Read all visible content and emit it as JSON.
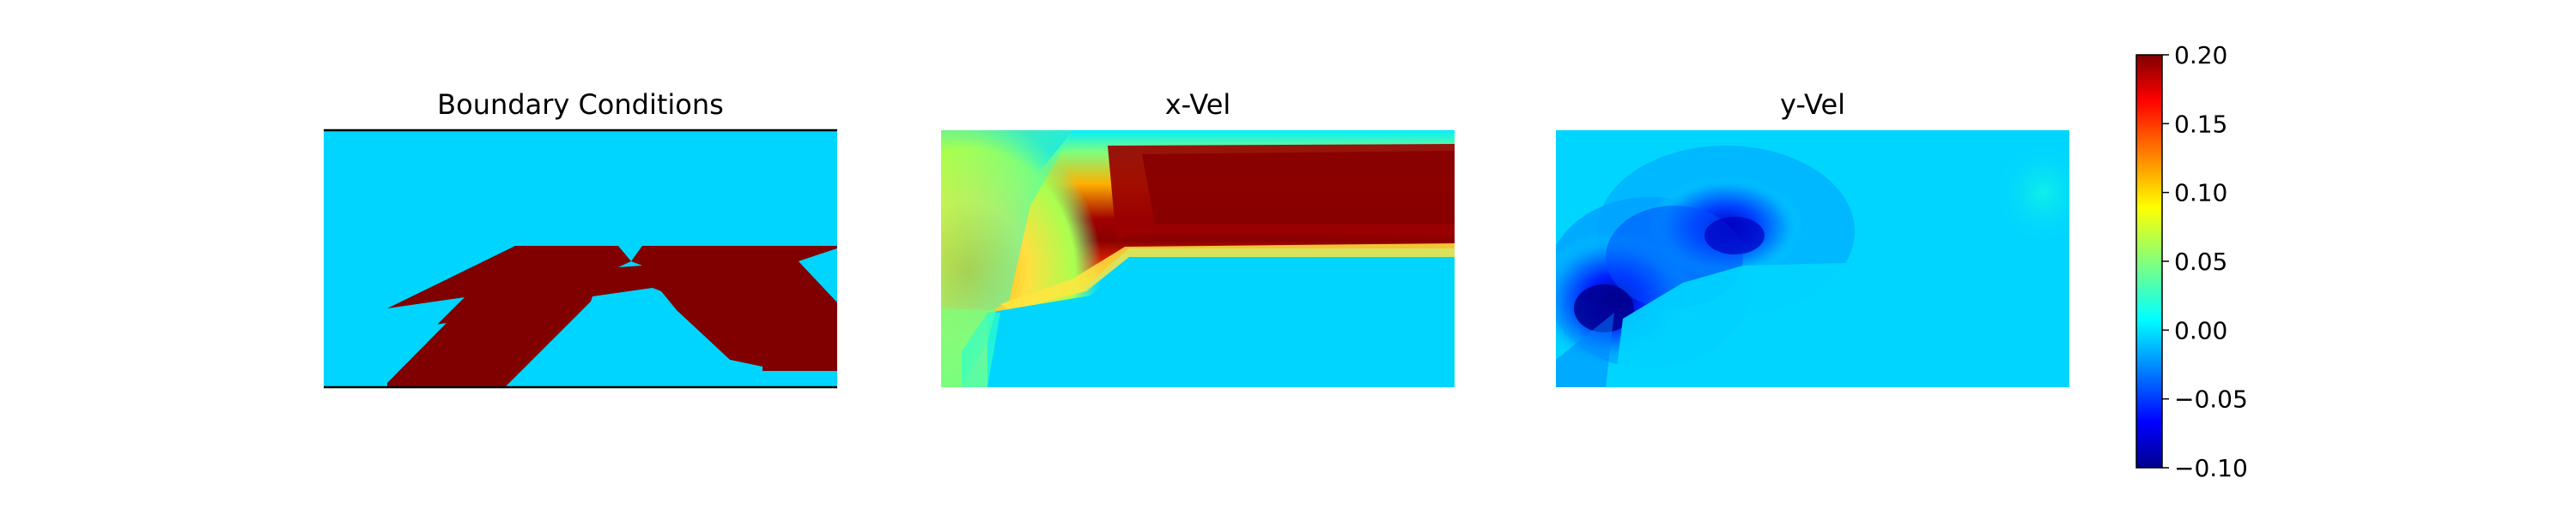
{
  "chart_data": [
    {
      "type": "heatmap",
      "title": "Boundary Conditions",
      "colormap": "jet",
      "value_range": [
        -0.1,
        0.2
      ],
      "note_regions": {
        "background": 0.0,
        "obstacle": 0.2
      },
      "x_range": [
        0,
        2
      ],
      "y_range": [
        0,
        1
      ]
    },
    {
      "type": "heatmap",
      "title": "x-Vel",
      "colormap": "jet",
      "value_range": [
        -0.1,
        0.2
      ],
      "x_range": [
        0,
        2
      ],
      "y_range": [
        0,
        1
      ]
    },
    {
      "type": "heatmap",
      "title": "y-Vel",
      "colormap": "jet",
      "value_range": [
        -0.1,
        0.2
      ],
      "x_range": [
        0,
        2
      ],
      "y_range": [
        0,
        1
      ]
    }
  ],
  "colorbar": {
    "colormap": "jet",
    "min": -0.1,
    "max": 0.2,
    "ticks": [
      "0.20",
      "0.15",
      "0.10",
      "0.05",
      "0.00",
      "−0.05",
      "−0.10"
    ],
    "tick_values": [
      0.2,
      0.15,
      0.1,
      0.05,
      0.0,
      -0.05,
      -0.1
    ]
  },
  "colors": {
    "jet_low": "#00008f",
    "jet_zero": "#00d5ff",
    "jet_high": "#800000"
  }
}
